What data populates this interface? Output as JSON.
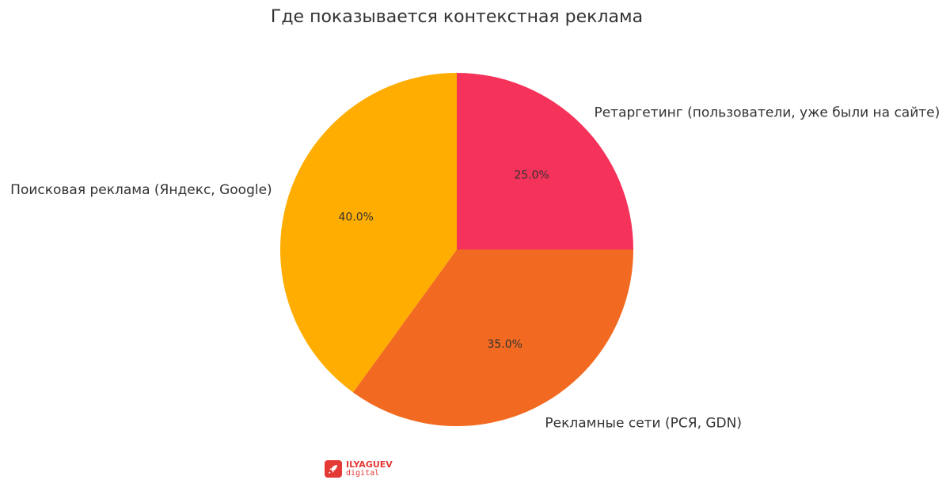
{
  "chart_data": {
    "type": "pie",
    "title": "Где показывается контекстная реклама",
    "start_angle_deg": 90,
    "direction": "clockwise",
    "slices": [
      {
        "label": "Ретаргетинг (пользователи, уже были на сайте)",
        "value": 25.0,
        "pct_label": "25.0%",
        "color": "#F5325A"
      },
      {
        "label": "Рекламные сети (РСЯ, GDN)",
        "value": 35.0,
        "pct_label": "35.0%",
        "color": "#F26A21"
      },
      {
        "label": "Поисковая реклама (Яндекс, Google)",
        "value": 40.0,
        "pct_label": "40.0%",
        "color": "#FFAD00"
      }
    ]
  },
  "logo": {
    "name": "ILYAGUEV",
    "sub": "digital",
    "icon": "rocket-icon",
    "color": "#E53935"
  }
}
